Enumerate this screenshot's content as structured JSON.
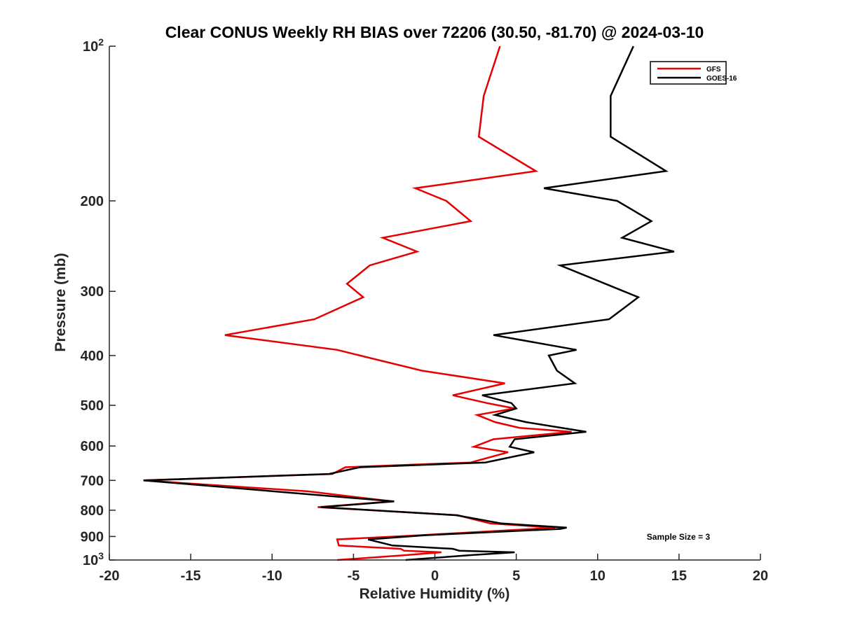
{
  "chart_data": {
    "type": "line",
    "title": "Clear CONUS Weekly RH BIAS over 72206 (30.50, -81.70) @ 2024-03-10",
    "xlabel": "Relative Humidity (%)",
    "ylabel": "Pressure (mb)",
    "xlim": [
      -20,
      20
    ],
    "ylim": [
      100,
      1000
    ],
    "y_scale": "log",
    "y_reversed": true,
    "grid": false,
    "x_ticks": [
      -20,
      -15,
      -10,
      -5,
      0,
      5,
      10,
      15,
      20
    ],
    "x_tick_labels": [
      "-20",
      "-15",
      "-10",
      "-5",
      "0",
      "5",
      "10",
      "15",
      "20"
    ],
    "y_ticks": [
      100,
      200,
      300,
      400,
      500,
      600,
      700,
      800,
      900,
      1000
    ],
    "y_tick_labels": [
      {
        "base": "10",
        "exp": "2"
      },
      {
        "base": "200",
        "exp": ""
      },
      {
        "base": "300",
        "exp": ""
      },
      {
        "base": "400",
        "exp": ""
      },
      {
        "base": "500",
        "exp": ""
      },
      {
        "base": "600",
        "exp": ""
      },
      {
        "base": "700",
        "exp": ""
      },
      {
        "base": "800",
        "exp": ""
      },
      {
        "base": "900",
        "exp": ""
      },
      {
        "base": "10",
        "exp": "3"
      }
    ],
    "legend_position": "top-right",
    "annotation": "Sample Size = 3",
    "series": [
      {
        "name": "GFS",
        "color": "#e60000",
        "points": [
          [
            4.0,
            100
          ],
          [
            3.0,
            125
          ],
          [
            2.7,
            150
          ],
          [
            6.2,
            175
          ],
          [
            -1.2,
            189
          ],
          [
            0.7,
            200
          ],
          [
            2.2,
            219
          ],
          [
            -3.2,
            236
          ],
          [
            -1.1,
            251
          ],
          [
            -4.0,
            267
          ],
          [
            -5.4,
            290
          ],
          [
            -4.4,
            308
          ],
          [
            -7.4,
            340
          ],
          [
            -12.9,
            365
          ],
          [
            -6.0,
            390
          ],
          [
            -4.6,
            400
          ],
          [
            -0.8,
            428
          ],
          [
            4.3,
            453
          ],
          [
            1.1,
            478
          ],
          [
            3.2,
            495
          ],
          [
            4.9,
            507
          ],
          [
            2.6,
            522
          ],
          [
            3.7,
            539
          ],
          [
            5.2,
            553
          ],
          [
            8.4,
            563
          ],
          [
            3.6,
            582
          ],
          [
            2.4,
            602
          ],
          [
            4.5,
            617
          ],
          [
            2.2,
            646
          ],
          [
            -5.5,
            660
          ],
          [
            -6.3,
            680
          ],
          [
            -17.9,
            700
          ],
          [
            -7.8,
            735
          ],
          [
            -2.6,
            769
          ],
          [
            -7.2,
            789
          ],
          [
            1.4,
            818
          ],
          [
            3.4,
            849
          ],
          [
            7.4,
            865
          ],
          [
            -0.9,
            895
          ],
          [
            -6.0,
            912
          ],
          [
            -5.9,
            937
          ],
          [
            -2.1,
            951
          ],
          [
            -1.9,
            959
          ],
          [
            0.4,
            966
          ],
          [
            -1.7,
            978
          ],
          [
            -6.0,
            1000
          ]
        ]
      },
      {
        "name": "GOES-16",
        "color": "#000000",
        "points": [
          [
            12.2,
            100
          ],
          [
            10.8,
            125
          ],
          [
            10.8,
            150
          ],
          [
            14.2,
            175
          ],
          [
            6.7,
            189
          ],
          [
            11.2,
            200
          ],
          [
            13.3,
            219
          ],
          [
            11.5,
            236
          ],
          [
            14.7,
            251
          ],
          [
            7.7,
            267
          ],
          [
            12.5,
            308
          ],
          [
            10.7,
            340
          ],
          [
            3.6,
            365
          ],
          [
            8.7,
            390
          ],
          [
            7.0,
            400
          ],
          [
            7.5,
            428
          ],
          [
            8.6,
            453
          ],
          [
            2.9,
            478
          ],
          [
            4.7,
            495
          ],
          [
            5.0,
            507
          ],
          [
            3.7,
            522
          ],
          [
            5.6,
            539
          ],
          [
            9.3,
            563
          ],
          [
            4.9,
            582
          ],
          [
            4.6,
            602
          ],
          [
            6.1,
            617
          ],
          [
            3.1,
            646
          ],
          [
            -4.6,
            660
          ],
          [
            -6.5,
            680
          ],
          [
            -17.9,
            700
          ],
          [
            -2.5,
            769
          ],
          [
            -7.0,
            789
          ],
          [
            1.3,
            818
          ],
          [
            4.1,
            849
          ],
          [
            8.1,
            865
          ],
          [
            7.7,
            870
          ],
          [
            -0.6,
            895
          ],
          [
            -4.1,
            912
          ],
          [
            -2.6,
            937
          ],
          [
            1.1,
            951
          ],
          [
            1.5,
            959
          ],
          [
            4.9,
            966
          ],
          [
            2.3,
            978
          ],
          [
            -1.8,
            1000
          ]
        ]
      }
    ]
  }
}
